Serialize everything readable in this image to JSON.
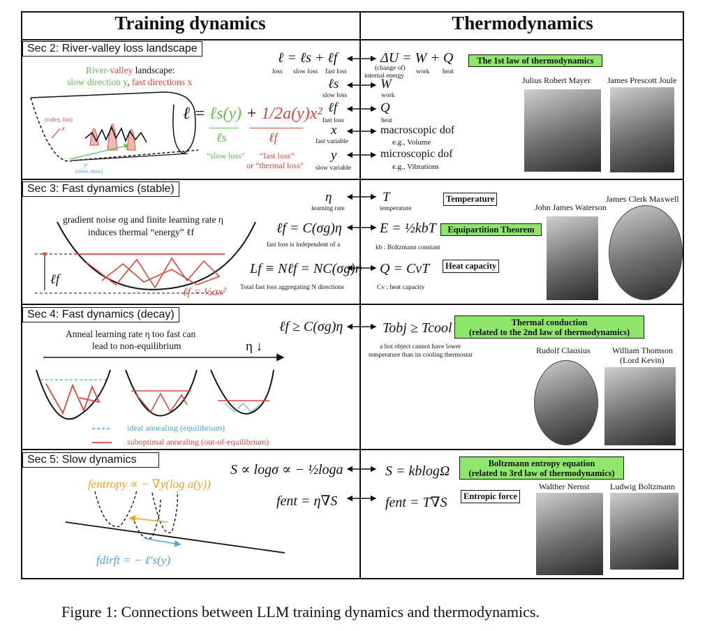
{
  "header": {
    "left": "Training dynamics",
    "right": "Thermodynamics"
  },
  "sections": {
    "s2": {
      "title": "Sec 2: River-valley loss landscape",
      "landscape_line1_a": "River-",
      "landscape_line1_b": "valley",
      "landscape_line1_c": " landscape:",
      "landscape_line2_a": "slow direction y",
      "landscape_line2_b": ", ",
      "landscape_line2_c": "fast directions x",
      "valley_label": "(valley, fast)",
      "valley_x": "x",
      "river_y": "y",
      "river_label": "(river, slow)",
      "big_eq_l": "ℓ = ",
      "big_eq_ls": "ℓs(y)",
      "big_eq_plus": " + ",
      "big_eq_half": "1/2",
      "big_eq_term": "a(y)x²",
      "under_ls": "ℓs",
      "under_lf": "ℓf",
      "slow_loss": "“slow loss”",
      "fast_loss": "“fast loss”",
      "thermal_loss": "or “thermal loss”"
    },
    "s3": {
      "title": "Sec 3: Fast dynamics (stable)",
      "noise_line1": "gradient noise σg and finite learning rate η",
      "noise_line2": "induces thermal “energy” ℓf",
      "lf_side": "ℓf",
      "lf_eq": "ℓf = ½ax²"
    },
    "s4": {
      "title": "Sec 4: Fast dynamics (decay)",
      "anneal_line1": "Anneal learning rate η too fast can",
      "anneal_line2": "lead to non-equilibrium",
      "eta_down": "η ↓",
      "legend_ideal": "ideal annealing (equilibrium)",
      "legend_sub": "suboptimal annealing (out-of-equilibrium)"
    },
    "s5": {
      "title": "Sec 5: Slow dynamics",
      "f_entropy": "fentropy ∝ − ∇y(log a(y))",
      "f_drift": "fdirft = − ℓ′s(y)"
    }
  },
  "mapping": {
    "r1": {
      "left": "ℓ = ℓs + ℓf",
      "left_sub": [
        "loss",
        "slow loss",
        "fast loss"
      ],
      "right": "ΔU = W + Q",
      "right_sub_a": "(change of)",
      "right_sub_b": "internal energy",
      "right_sub_c": "work",
      "right_sub_d": "heat"
    },
    "r2": {
      "left": "ℓs",
      "left_sub": "slow loss",
      "right": "W",
      "right_sub": "work"
    },
    "r3": {
      "left": "ℓf",
      "left_sub": "fast loss",
      "right": "Q",
      "right_sub": "heat"
    },
    "r4": {
      "left": "x",
      "left_sub": "fast variable",
      "right": "macroscopic dof",
      "right_sub": "e.g., Volume"
    },
    "r5": {
      "left": "y",
      "left_sub": "slow variable",
      "right": "microscopic dof",
      "right_sub": "e.g., Vibrations"
    },
    "r6": {
      "left": "η",
      "left_sub": "learning rate",
      "right": "T",
      "right_sub": "temperature"
    },
    "r7": {
      "left": "ℓf = C(σg)η",
      "left_sub": "fast loss is independent of a",
      "right": "E = ½kbT",
      "right_sub": "kb : Boltzmann constant"
    },
    "r8": {
      "left": "Lf ≡ Nℓf = NC(σg)η",
      "left_sub": "Total fast loss aggregating N directions",
      "right": "Q = CvT",
      "right_sub": "Cv : heat capacity"
    },
    "r9": {
      "left": "ℓf ≥ C(σg)η",
      "right": "Tobj ≥ Tcool",
      "right_sub1": "a hot object cannot have lower",
      "right_sub2": "temperature than its cooling thermostat"
    },
    "r10": {
      "left": "S ∝ logσ ∝ − ½loga",
      "right": "S = kblogΩ"
    },
    "r11": {
      "left": "fent = η∇S",
      "right": "fent = T∇S"
    }
  },
  "labels": {
    "first_law": "The 1st law of thermodynamics",
    "temperature": "Temperature",
    "equipartition": "Equipartition Theorem",
    "heat_capacity": "Heat capacity",
    "conduction1": "Thermal conduction",
    "conduction2": "(related to the 2nd law of thermodynamics)",
    "boltz1": "Boltzmann entropy equation",
    "boltz2": "(related to 3rd law of thermodynamics)",
    "entropic": "Entropic force"
  },
  "people": {
    "mayer": "Julius Robert Mayer",
    "joule": "James Prescott Joule",
    "waterson": "John James Waterson",
    "maxwell": "James Clerk Maxwell",
    "clausius": "Rudolf Clausius",
    "thomson1": "William Thomson",
    "thomson2": "(Lord Kevin)",
    "nernst": "Walther Nernst",
    "boltzmann": "Ludwig Boltzmann"
  },
  "colors": {
    "red": "#d8463a",
    "green": "#5fbf4a",
    "blue": "#4ea3de",
    "orange": "#e8a22a",
    "label_green": "#8ee66a"
  },
  "caption": "Figure 1: Connections between LLM training dynamics and thermodynamics."
}
